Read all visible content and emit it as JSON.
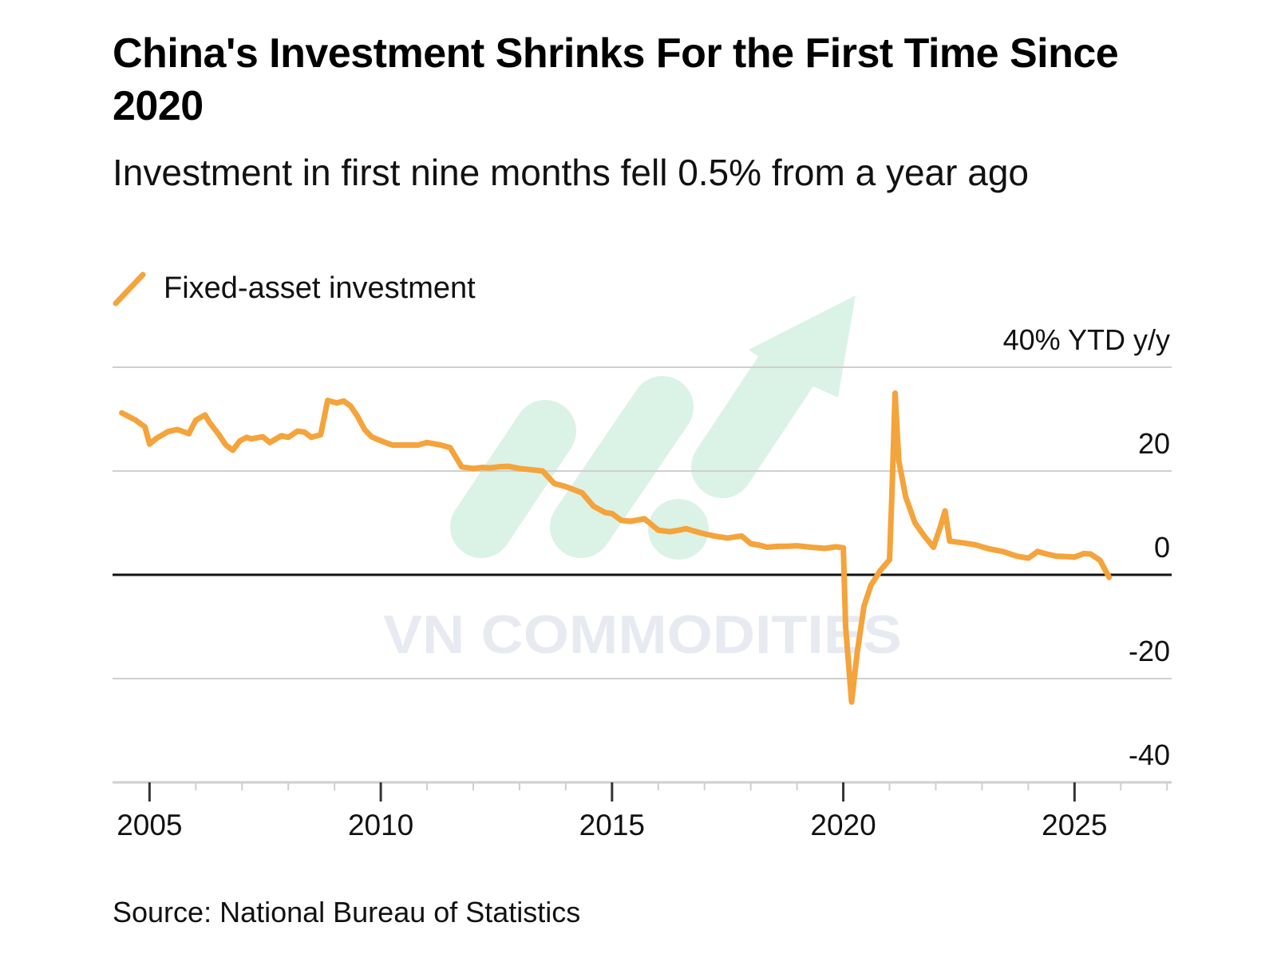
{
  "chart_data": {
    "type": "line",
    "title": "China's Investment Shrinks For the First Time Since 2020",
    "subtitle": "Investment in first nine months fell 0.5% from a year ago",
    "unit_label": "40% YTD y/y",
    "ylim": [
      -40,
      40
    ],
    "xlim": [
      2004.2,
      2027.1
    ],
    "yticks": [
      40,
      20,
      0,
      -20,
      -40
    ],
    "ytick_labels": [
      "40% YTD y/y",
      "20",
      "0",
      "-20",
      "-40"
    ],
    "xticks": [
      2005,
      2010,
      2015,
      2020,
      2025
    ],
    "xtick_labels": [
      "2005",
      "2010",
      "2015",
      "2020",
      "2025"
    ],
    "grid": true,
    "legend_position": "top-left",
    "series": [
      {
        "name": "Fixed-asset investment",
        "color": "#f5a33b",
        "x": [
          2004.4,
          2004.7,
          2004.9,
          2005.0,
          2005.15,
          2005.4,
          2005.6,
          2005.85,
          2006.0,
          2006.2,
          2006.3,
          2006.5,
          2006.65,
          2006.8,
          2006.95,
          2007.1,
          2007.2,
          2007.45,
          2007.6,
          2007.85,
          2008.0,
          2008.2,
          2008.35,
          2008.5,
          2008.7,
          2008.85,
          2009.05,
          2009.2,
          2009.35,
          2009.5,
          2009.65,
          2009.8,
          2009.9,
          2010.1,
          2010.25,
          2010.5,
          2010.8,
          2011.0,
          2011.3,
          2011.5,
          2011.75,
          2012.0,
          2012.2,
          2012.35,
          2012.55,
          2012.75,
          2013.0,
          2013.3,
          2013.5,
          2013.75,
          2014.0,
          2014.15,
          2014.35,
          2014.6,
          2014.85,
          2015.0,
          2015.2,
          2015.4,
          2015.7,
          2016.0,
          2016.25,
          2016.45,
          2016.6,
          2016.75,
          2016.95,
          2017.2,
          2017.5,
          2017.8,
          2018.0,
          2018.2,
          2018.35,
          2018.6,
          2018.8,
          2019.0,
          2019.3,
          2019.6,
          2019.85,
          2020.0,
          2020.05,
          2020.18,
          2020.3,
          2020.45,
          2020.6,
          2020.8,
          2021.0,
          2021.05,
          2021.12,
          2021.2,
          2021.35,
          2021.55,
          2021.75,
          2021.95,
          2022.1,
          2022.2,
          2022.3,
          2022.55,
          2022.85,
          2023.15,
          2023.45,
          2023.75,
          2024.0,
          2024.2,
          2024.4,
          2024.6,
          2024.85,
          2025.0,
          2025.2,
          2025.35,
          2025.55,
          2025.75
        ],
        "values": [
          31.2,
          29.8,
          28.5,
          25.2,
          26.3,
          27.6,
          28.0,
          27.2,
          29.8,
          30.8,
          29.3,
          27.0,
          25.0,
          24.0,
          25.8,
          26.5,
          26.2,
          26.6,
          25.5,
          26.8,
          26.5,
          27.7,
          27.5,
          26.5,
          27.0,
          33.6,
          33.1,
          33.5,
          32.5,
          30.5,
          28.0,
          26.6,
          26.2,
          25.5,
          25.0,
          25.0,
          25.0,
          25.5,
          25.0,
          24.5,
          20.8,
          20.5,
          20.7,
          20.6,
          20.8,
          20.9,
          20.5,
          20.2,
          20.0,
          17.6,
          17.0,
          16.5,
          15.8,
          13.2,
          12.0,
          11.8,
          10.5,
          10.3,
          10.8,
          8.6,
          8.3,
          8.6,
          8.9,
          8.5,
          8.0,
          7.5,
          7.1,
          7.5,
          6.0,
          5.7,
          5.3,
          5.5,
          5.5,
          5.6,
          5.3,
          5.1,
          5.4,
          5.2,
          -10.0,
          -24.5,
          -15.0,
          -6.0,
          -2.0,
          0.8,
          2.9,
          15.0,
          35.0,
          22.0,
          15.0,
          10.0,
          7.5,
          5.3,
          9.3,
          12.3,
          6.5,
          6.2,
          5.8,
          5.0,
          4.5,
          3.6,
          3.2,
          4.5,
          4.0,
          3.6,
          3.5,
          3.4,
          4.1,
          4.0,
          2.8,
          -0.5
        ]
      }
    ]
  },
  "legend": {
    "label": "Fixed-asset investment"
  },
  "source": "Source: National Bureau of Statistics",
  "watermark": {
    "text": "VN COMMODITIES",
    "icon": "rising-arrow-logo"
  }
}
